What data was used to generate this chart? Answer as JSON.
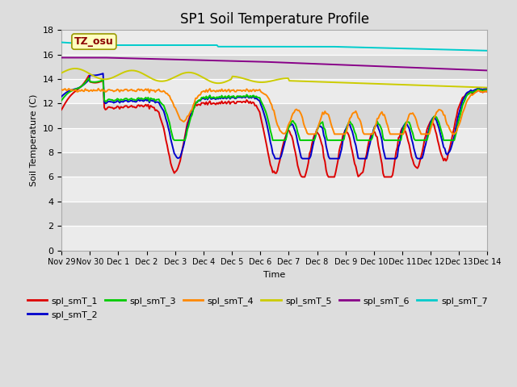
{
  "title": "SP1 Soil Temperature Profile",
  "xlabel": "Time",
  "ylabel": "Soil Temperature (C)",
  "ylim": [
    0,
    18
  ],
  "yticks": [
    0,
    2,
    4,
    6,
    8,
    10,
    12,
    14,
    16,
    18
  ],
  "tz_label": "TZ_osu",
  "x_tick_labels": [
    "Nov 29",
    "Nov 30",
    "Dec 1",
    "Dec 2",
    "Dec 3",
    "Dec 4",
    "Dec 5",
    "Dec 6",
    "Dec 7",
    "Dec 8",
    "Dec 9",
    "Dec 10",
    "Dec 11",
    "Dec 12",
    "Dec 13",
    "Dec 14"
  ],
  "series_colors": {
    "spl_smT_1": "#dd0000",
    "spl_smT_2": "#0000cc",
    "spl_smT_3": "#00cc00",
    "spl_smT_4": "#ff8800",
    "spl_smT_5": "#cccc00",
    "spl_smT_6": "#880088",
    "spl_smT_7": "#00cccc"
  },
  "legend_order": [
    "spl_smT_1",
    "spl_smT_2",
    "spl_smT_3",
    "spl_smT_4",
    "spl_smT_5",
    "spl_smT_6",
    "spl_smT_7"
  ],
  "bg_color": "#dddddd",
  "plot_bg_light": "#eeeeee",
  "plot_bg_dark": "#dddddd"
}
